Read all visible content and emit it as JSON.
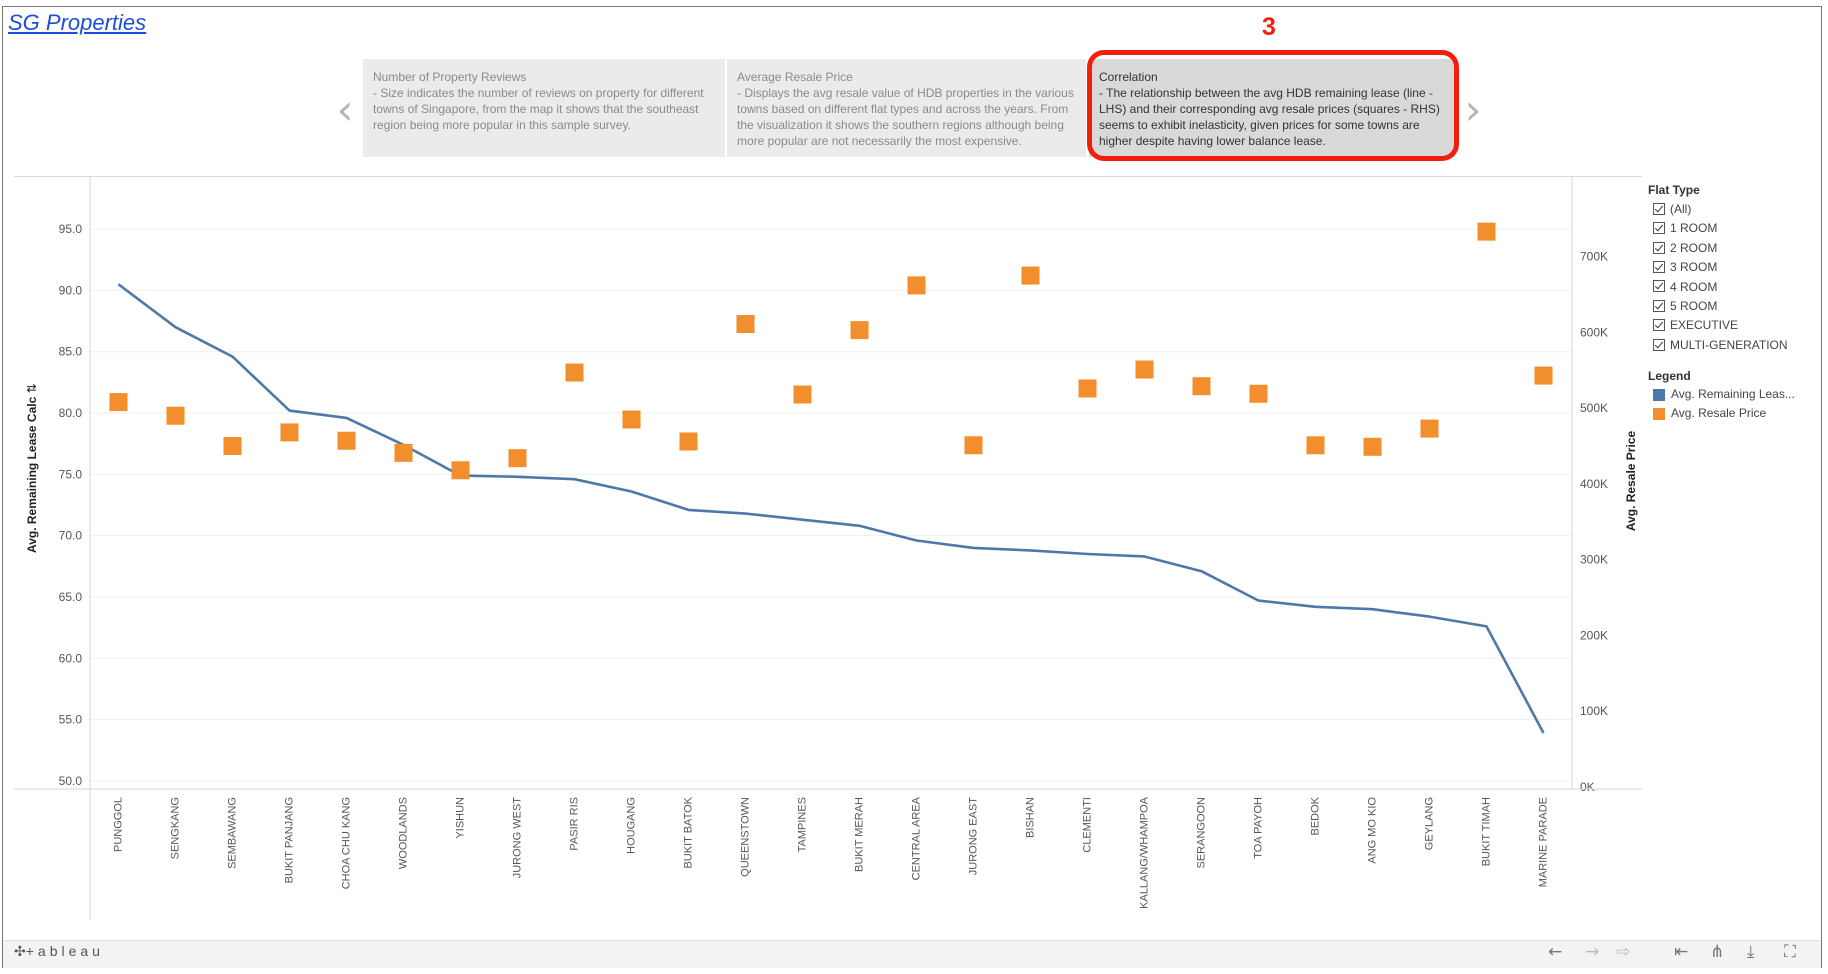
{
  "app": {
    "title": "SG Properties",
    "annotation_number": "3"
  },
  "story": {
    "prev_icon": "‹",
    "next_icon": "›",
    "points": [
      {
        "title": "Number of Property Reviews",
        "description": "- Size indicates the number of reviews on property for different towns of Singapore, from the map it shows that the southeast region being more popular in this sample survey."
      },
      {
        "title": "Average Resale Price",
        "description": "- Displays the avg resale value of HDB properties in the various towns based on different flat types and across the years. From the visualization it shows the southern regions although being more popular are not necessarily the most expensive."
      },
      {
        "title": "Correlation",
        "description": "- The relationship between the avg HDB remaining lease (line - LHS) and their corresponding avg resale prices (squares - RHS) seems to exhibit inelasticity, given prices for some towns are higher despite having lower balance lease."
      }
    ]
  },
  "chart_data": {
    "type": "line",
    "categories": [
      "PUNGGOL",
      "SENGKANG",
      "SEMBAWANG",
      "BUKIT PANJANG",
      "CHOA CHU KANG",
      "WOODLANDS",
      "YISHUN",
      "JURONG WEST",
      "PASIR RIS",
      "HOUGANG",
      "BUKIT BATOK",
      "QUEENSTOWN",
      "TAMPINES",
      "BUKIT MERAH",
      "CENTRAL AREA",
      "JURONG EAST",
      "BISHAN",
      "CLEMENTI",
      "KALLANG/WHAMPOA",
      "SERANGOON",
      "TOA PAYOH",
      "BEDOK",
      "ANG MO KIO",
      "GEYLANG",
      "BUKIT TIMAH",
      "MARINE PARADE"
    ],
    "series": [
      {
        "name": "Avg. Remaining Leas...",
        "axis": "left",
        "color": "#4e79a7",
        "mark": "line",
        "values": [
          90.5,
          87.0,
          84.6,
          80.2,
          79.6,
          77.4,
          74.9,
          74.8,
          74.6,
          73.6,
          72.1,
          71.8,
          71.3,
          70.8,
          69.6,
          69.0,
          68.8,
          68.5,
          68.3,
          67.1,
          64.7,
          64.2,
          64.0,
          63.4,
          62.6,
          53.9
        ]
      },
      {
        "name": "Avg. Resale Price",
        "axis": "right",
        "color": "#f28e2b",
        "mark": "square",
        "values": [
          508000,
          490000,
          450000,
          468000,
          457000,
          441000,
          418000,
          434000,
          547000,
          485000,
          456000,
          611000,
          518000,
          603000,
          662000,
          451000,
          675000,
          526000,
          551000,
          529000,
          519000,
          451000,
          449000,
          473000,
          733000,
          543000
        ]
      }
    ],
    "ylabel_left": "Avg. Remaining Lease Calc",
    "ylabel_right": "Avg. Resale Price",
    "ylim_left": [
      49.5,
      97.7
    ],
    "ylim_right": [
      0,
      780000
    ],
    "yticks_left": [
      "95.0",
      "90.0",
      "85.0",
      "80.0",
      "75.0",
      "70.0",
      "65.0",
      "60.0",
      "55.0",
      "50.0"
    ],
    "yticks_right": [
      "700K",
      "600K",
      "500K",
      "400K",
      "300K",
      "200K",
      "100K",
      "0K"
    ],
    "grid": true
  },
  "filters": {
    "title": "Flat Type",
    "items": [
      "(All)",
      "1 ROOM",
      "2 ROOM",
      "3 ROOM",
      "4 ROOM",
      "5 ROOM",
      "EXECUTIVE",
      "MULTI-GENERATION"
    ]
  },
  "legend": {
    "title": "Legend",
    "items": [
      {
        "label": "Avg. Remaining Leas...",
        "color": "#4e79a7"
      },
      {
        "label": "Avg. Resale Price",
        "color": "#f28e2b"
      }
    ]
  },
  "toolbar": {
    "brand": "+ableau",
    "icons": [
      "undo-icon",
      "redo-icon",
      "revert-icon",
      "reset-icon",
      "share-icon",
      "download-icon",
      "fullscreen-icon"
    ]
  }
}
